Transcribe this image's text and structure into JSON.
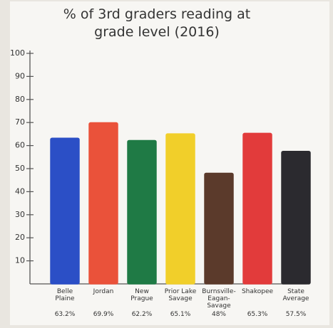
{
  "chart_data": {
    "type": "bar",
    "title": "% of 3rd graders reading at grade level (2016)",
    "categories": [
      "Belle Plaine",
      "Jordan",
      "New Prague",
      "Prior Lake Savage",
      "Burnsville-Eagan-Savage",
      "Shakopee",
      "State Average"
    ],
    "values": [
      63.2,
      69.9,
      62.2,
      65.1,
      48,
      65.3,
      57.5
    ],
    "value_labels": [
      "63.2%",
      "69.9%",
      "62.2%",
      "65.1%",
      "48%",
      "65.3%",
      "57.5%"
    ],
    "colors": [
      "#2b4fc6",
      "#ea523a",
      "#1f7a45",
      "#f1cf2a",
      "#5b3a2b",
      "#e23b3b",
      "#2b2a2f"
    ],
    "ylim": [
      0,
      100
    ],
    "yticks": [
      10,
      20,
      30,
      40,
      50,
      60,
      70,
      80,
      90,
      100
    ]
  }
}
